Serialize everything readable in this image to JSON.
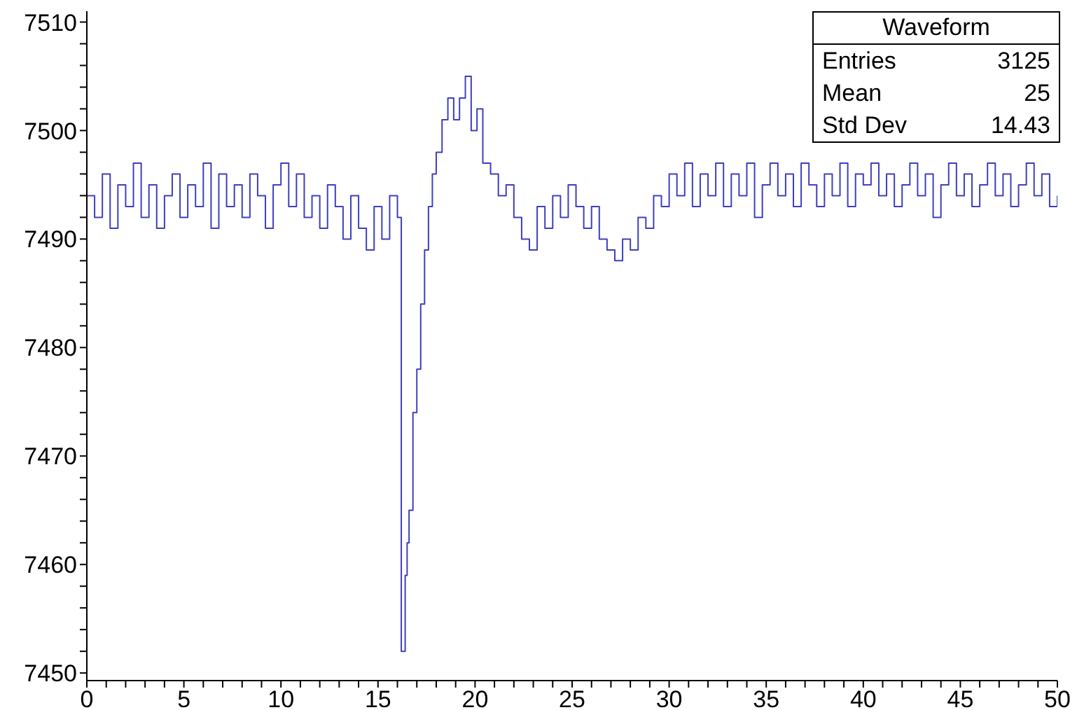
{
  "chart_data": {
    "type": "step",
    "title": "Waveform",
    "annotations": [
      "Entries 3125",
      "Mean 25",
      "Std Dev 14.43"
    ],
    "color": "#3f3fbf",
    "legend": false,
    "grid": false,
    "x": [
      0,
      0.4,
      0.8,
      1.2,
      1.6,
      2,
      2.4,
      2.8,
      3.2,
      3.6,
      4,
      4.4,
      4.8,
      5.2,
      5.6,
      6,
      6.4,
      6.8,
      7.2,
      7.6,
      8,
      8.4,
      8.8,
      9.2,
      9.6,
      10,
      10.4,
      10.8,
      11.2,
      11.6,
      12,
      12.4,
      12.8,
      13.2,
      13.6,
      14,
      14.4,
      14.8,
      15.2,
      15.6,
      16,
      16.2,
      16.4,
      16.5,
      16.6,
      16.8,
      17,
      17.2,
      17.4,
      17.6,
      17.8,
      18,
      18.3,
      18.6,
      18.9,
      19.2,
      19.5,
      19.8,
      20.1,
      20.4,
      20.8,
      21.2,
      21.6,
      22,
      22.4,
      22.8,
      23.2,
      23.6,
      24,
      24.4,
      24.8,
      25.2,
      25.6,
      26,
      26.4,
      26.8,
      27.2,
      27.6,
      28,
      28.4,
      28.8,
      29.2,
      29.6,
      30,
      30.4,
      30.8,
      31.2,
      31.6,
      32,
      32.4,
      32.8,
      33.2,
      33.6,
      34,
      34.4,
      34.8,
      35.2,
      35.6,
      36,
      36.4,
      36.8,
      37.2,
      37.6,
      38,
      38.4,
      38.8,
      39.2,
      39.6,
      40,
      40.4,
      40.8,
      41.2,
      41.6,
      42,
      42.4,
      42.8,
      43.2,
      43.6,
      44,
      44.4,
      44.8,
      45.2,
      45.6,
      46,
      46.4,
      46.8,
      47.2,
      47.6,
      48,
      48.4,
      48.8,
      49.2,
      49.6,
      50
    ],
    "values": [
      7494,
      7492,
      7496,
      7491,
      7495,
      7493,
      7497,
      7492,
      7495,
      7491,
      7494,
      7496,
      7492,
      7495,
      7493,
      7497,
      7491,
      7496,
      7493,
      7495,
      7492,
      7496,
      7494,
      7491,
      7495,
      7497,
      7493,
      7496,
      7492,
      7494,
      7491,
      7495,
      7493,
      7490,
      7494,
      7491,
      7489,
      7493,
      7490,
      7494,
      7492,
      7452,
      7459,
      7462,
      7465,
      7474,
      7478,
      7484,
      7489,
      7493,
      7496,
      7498,
      7501,
      7503,
      7501,
      7503,
      7505,
      7500,
      7502,
      7497,
      7496,
      7494,
      7495,
      7492,
      7490,
      7489,
      7493,
      7491,
      7494,
      7492,
      7495,
      7493,
      7491,
      7493,
      7490,
      7489,
      7488,
      7490,
      7489,
      7492,
      7491,
      7494,
      7493,
      7496,
      7494,
      7497,
      7493,
      7496,
      7494,
      7497,
      7493,
      7496,
      7494,
      7497,
      7492,
      7495,
      7497,
      7494,
      7496,
      7493,
      7497,
      7495,
      7493,
      7496,
      7494,
      7497,
      7493,
      7496,
      7495,
      7497,
      7494,
      7496,
      7493,
      7495,
      7497,
      7494,
      7496,
      7492,
      7495,
      7497,
      7494,
      7496,
      7493,
      7495,
      7497,
      7494,
      7496,
      7493,
      7495,
      7497,
      7494,
      7496,
      7493,
      7494
    ],
    "xlim": [
      0,
      50
    ],
    "xticks": [
      0,
      {
        "value": 1,
        "label": null
      },
      {
        "value": 2,
        "label": null
      },
      {
        "value": 3,
        "label": null
      },
      {
        "value": 4,
        "label": null
      },
      5,
      {
        "value": 6,
        "label": null
      },
      {
        "value": 7,
        "label": null
      },
      {
        "value": 8,
        "label": null
      },
      {
        "value": 9,
        "label": null
      },
      10,
      {
        "value": 11,
        "label": null
      },
      {
        "value": 12,
        "label": null
      },
      {
        "value": 13,
        "label": null
      },
      {
        "value": 14,
        "label": null
      },
      15,
      {
        "value": 16,
        "label": null
      },
      {
        "value": 17,
        "label": null
      },
      {
        "value": 18,
        "label": null
      },
      {
        "value": 19,
        "label": null
      },
      20,
      {
        "value": 21,
        "label": null
      },
      {
        "value": 22,
        "label": null
      },
      {
        "value": 23,
        "label": null
      },
      {
        "value": 24,
        "label": null
      },
      25,
      {
        "value": 26,
        "label": null
      },
      {
        "value": 27,
        "label": null
      },
      {
        "value": 28,
        "label": null
      },
      {
        "value": 29,
        "label": null
      },
      30,
      {
        "value": 31,
        "label": null
      },
      {
        "value": 32,
        "label": null
      },
      {
        "value": 33,
        "label": null
      },
      {
        "value": 34,
        "label": null
      },
      35,
      {
        "value": 36,
        "label": null
      },
      {
        "value": 37,
        "label": null
      },
      {
        "value": 38,
        "label": null
      },
      {
        "value": 39,
        "label": null
      },
      40,
      {
        "value": 41,
        "label": null
      },
      {
        "value": 42,
        "label": null
      },
      {
        "value": 43,
        "label": null
      },
      {
        "value": 44,
        "label": null
      },
      45,
      {
        "value": 46,
        "label": null
      },
      {
        "value": 47,
        "label": null
      },
      {
        "value": 48,
        "label": null
      },
      {
        "value": 49,
        "label": null
      },
      50
    ],
    "ylim": [
      7449.3,
      7511
    ],
    "yticks": [
      7450,
      {
        "value": 7452,
        "label": null
      },
      {
        "value": 7454,
        "label": null
      },
      {
        "value": 7456,
        "label": null
      },
      {
        "value": 7458,
        "label": null
      },
      7460,
      {
        "value": 7462,
        "label": null
      },
      {
        "value": 7464,
        "label": null
      },
      {
        "value": 7466,
        "label": null
      },
      {
        "value": 7468,
        "label": null
      },
      7470,
      {
        "value": 7472,
        "label": null
      },
      {
        "value": 7474,
        "label": null
      },
      {
        "value": 7476,
        "label": null
      },
      {
        "value": 7478,
        "label": null
      },
      7480,
      {
        "value": 7482,
        "label": null
      },
      {
        "value": 7484,
        "label": null
      },
      {
        "value": 7486,
        "label": null
      },
      {
        "value": 7488,
        "label": null
      },
      7490,
      {
        "value": 7492,
        "label": null
      },
      {
        "value": 7494,
        "label": null
      },
      {
        "value": 7496,
        "label": null
      },
      {
        "value": 7498,
        "label": null
      },
      7500,
      {
        "value": 7502,
        "label": null
      },
      {
        "value": 7504,
        "label": null
      },
      {
        "value": 7506,
        "label": null
      },
      {
        "value": 7508,
        "label": null
      },
      7510
    ]
  }
}
